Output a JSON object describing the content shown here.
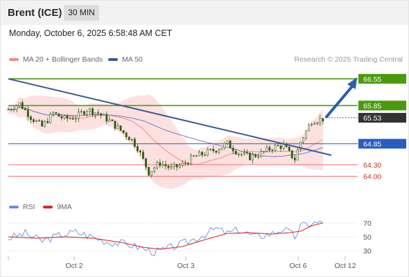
{
  "header": {
    "symbol": "Brent (ICE)",
    "timeframe": "30 MIN",
    "datetime": "Monday, October 6, 2025 6:58:48 AM CET"
  },
  "legend": {
    "bollinger_label": "MA 20 + Bollinger Bands",
    "ma50_label": "MA 50",
    "credit": "Research © 2025 Trading Central",
    "rsi_label": "RSI",
    "rsi_ma_label": "9MA"
  },
  "colors": {
    "resistance": "#4a9a0d",
    "current": "#333333",
    "support": "#2a5bbf",
    "target": "#f07272",
    "trendline": "#385a95",
    "band_fill": "#fde1e1",
    "ma20": "#f08a8a",
    "ma50": "#6e7fb8",
    "candle": "#2f5d12",
    "arrow": "#2c5da8",
    "rsi": "#6a8bdc",
    "rsi_ma": "#d62b2b"
  },
  "chart_data": {
    "type": "candlestick",
    "ylim": [
      63.7,
      66.8
    ],
    "levels": [
      {
        "value": 66.55,
        "label": "66.55",
        "kind": "resistance"
      },
      {
        "value": 65.85,
        "label": "65.85",
        "kind": "resistance"
      },
      {
        "value": 65.53,
        "label": "65.53",
        "kind": "current"
      },
      {
        "value": 64.85,
        "label": "64.85",
        "kind": "support"
      },
      {
        "value": 64.3,
        "label": "64.30",
        "kind": "target"
      },
      {
        "value": 64.0,
        "label": "64.00",
        "kind": "target"
      }
    ],
    "x_ticks": [
      "Oct 2",
      "Oct 3",
      "Oct 6",
      "Oct 12"
    ],
    "price_path": [
      [
        0,
        65.75
      ],
      [
        4,
        65.9
      ],
      [
        8,
        65.55
      ],
      [
        12,
        65.3
      ],
      [
        16,
        65.65
      ],
      [
        20,
        65.5
      ],
      [
        24,
        65.55
      ],
      [
        28,
        65.75
      ],
      [
        32,
        65.65
      ],
      [
        36,
        65.45
      ],
      [
        40,
        65.2
      ],
      [
        44,
        64.95
      ],
      [
        46,
        64.75
      ],
      [
        50,
        64.1
      ],
      [
        54,
        64.35
      ],
      [
        58,
        64.2
      ],
      [
        62,
        64.3
      ],
      [
        66,
        64.5
      ],
      [
        70,
        64.6
      ],
      [
        74,
        64.7
      ],
      [
        78,
        64.85
      ],
      [
        82,
        64.6
      ],
      [
        86,
        64.5
      ],
      [
        90,
        64.6
      ],
      [
        94,
        64.75
      ],
      [
        98,
        64.8
      ],
      [
        100,
        64.6
      ],
      [
        102,
        64.45
      ],
      [
        104,
        64.9
      ],
      [
        108,
        65.45
      ],
      [
        112,
        65.5
      ]
    ],
    "trendline": {
      "from": [
        0,
        66.55
      ],
      "to": [
        115,
        64.55
      ]
    },
    "projection": {
      "from": 65.53,
      "to": 66.55
    },
    "rsi": {
      "ticks": [
        70,
        50,
        30
      ],
      "ylim": [
        20,
        80
      ],
      "rsi_path": [
        [
          0,
          48
        ],
        [
          6,
          55
        ],
        [
          12,
          44
        ],
        [
          18,
          52
        ],
        [
          24,
          57
        ],
        [
          30,
          50
        ],
        [
          36,
          42
        ],
        [
          42,
          40
        ],
        [
          48,
          33
        ],
        [
          52,
          28
        ],
        [
          56,
          32
        ],
        [
          62,
          40
        ],
        [
          68,
          50
        ],
        [
          74,
          62
        ],
        [
          78,
          55
        ],
        [
          82,
          60
        ],
        [
          88,
          50
        ],
        [
          94,
          55
        ],
        [
          98,
          62
        ],
        [
          102,
          50
        ],
        [
          104,
          65
        ],
        [
          108,
          70
        ],
        [
          112,
          70
        ]
      ],
      "ma_path": [
        [
          0,
          50
        ],
        [
          10,
          48
        ],
        [
          20,
          50
        ],
        [
          30,
          48
        ],
        [
          40,
          42
        ],
        [
          48,
          35
        ],
        [
          54,
          32
        ],
        [
          62,
          36
        ],
        [
          70,
          46
        ],
        [
          78,
          55
        ],
        [
          86,
          56
        ],
        [
          94,
          54
        ],
        [
          100,
          56
        ],
        [
          104,
          58
        ],
        [
          108,
          66
        ],
        [
          112,
          70
        ]
      ]
    }
  }
}
